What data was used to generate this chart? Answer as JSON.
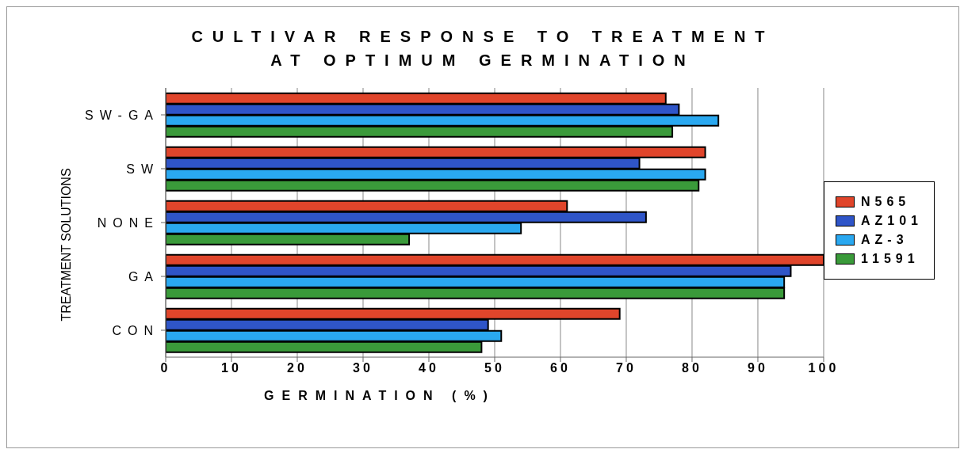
{
  "chart_data": {
    "type": "bar",
    "orientation": "horizontal",
    "title": "CULTIVAR RESPONSE TO TREATMENT AT OPTIMUM GERMINATION",
    "xlabel": "GERMINATION (%)",
    "ylabel": "TREATMENT SOLUTIONS",
    "categories": [
      "SW-GA",
      "SW",
      "NONE",
      "GA",
      "CON"
    ],
    "series": [
      {
        "name": "N565",
        "color": "#e0452b",
        "values": [
          76,
          82,
          61,
          100,
          69
        ]
      },
      {
        "name": "AZ101",
        "color": "#2f55c8",
        "values": [
          78,
          72,
          73,
          95,
          49
        ]
      },
      {
        "name": "AZ-3",
        "color": "#2aa8f0",
        "values": [
          84,
          82,
          54,
          94,
          51
        ]
      },
      {
        "name": "11591",
        "color": "#3a9a3a",
        "values": [
          77,
          81,
          37,
          94,
          48
        ]
      }
    ],
    "xlim": [
      0,
      100
    ],
    "xticks": [
      0,
      10,
      20,
      30,
      40,
      50,
      60,
      70,
      80,
      90,
      100
    ],
    "grid": "x",
    "legend": "right"
  }
}
